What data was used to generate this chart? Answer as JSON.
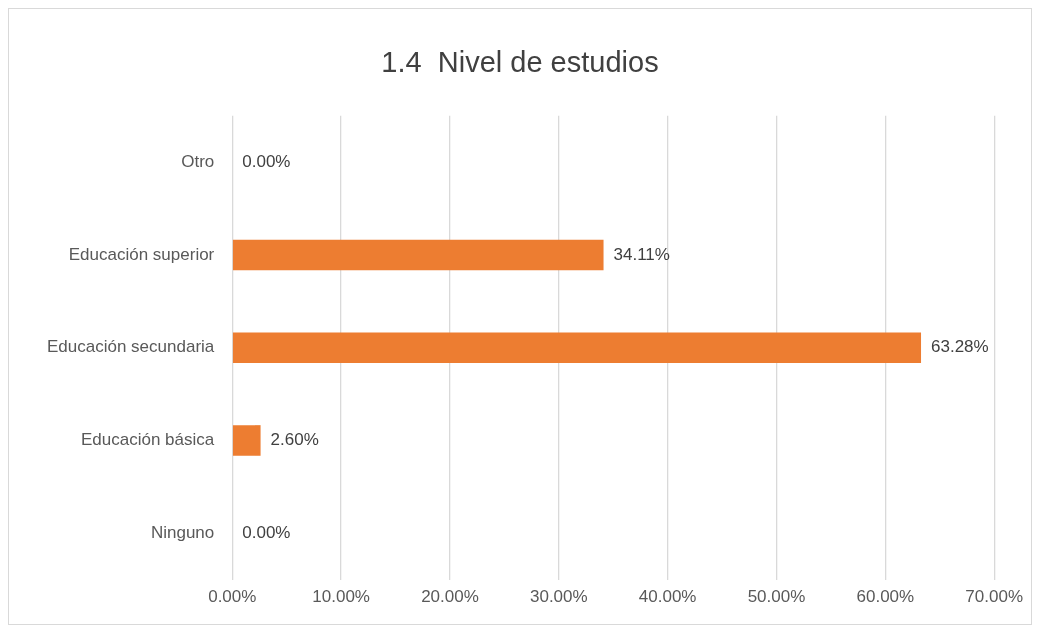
{
  "chart_data": {
    "type": "bar",
    "title": "1.4  Nivel de estudios",
    "orientation": "horizontal",
    "categories": [
      "Otro",
      "Educación superior",
      "Educación secundaria",
      "Educación básica",
      "Ninguno"
    ],
    "values": [
      0,
      34.11,
      63.28,
      2.6,
      0
    ],
    "value_labels": [
      "0.00%",
      "34.11%",
      "63.28%",
      "2.60%",
      "0.00%"
    ],
    "color": "#ed7d31",
    "xlim": [
      0,
      70
    ],
    "xticks": [
      {
        "value": 0,
        "label": "0.00%"
      },
      {
        "value": 10,
        "label": "10.00%"
      },
      {
        "value": 20,
        "label": "20.00%"
      },
      {
        "value": 30,
        "label": "30.00%"
      },
      {
        "value": 40,
        "label": "40.00%"
      },
      {
        "value": 50,
        "label": "50.00%"
      },
      {
        "value": 60,
        "label": "60.00%"
      },
      {
        "value": 70,
        "label": "70.00%"
      }
    ],
    "grid": "x",
    "legend": false
  }
}
